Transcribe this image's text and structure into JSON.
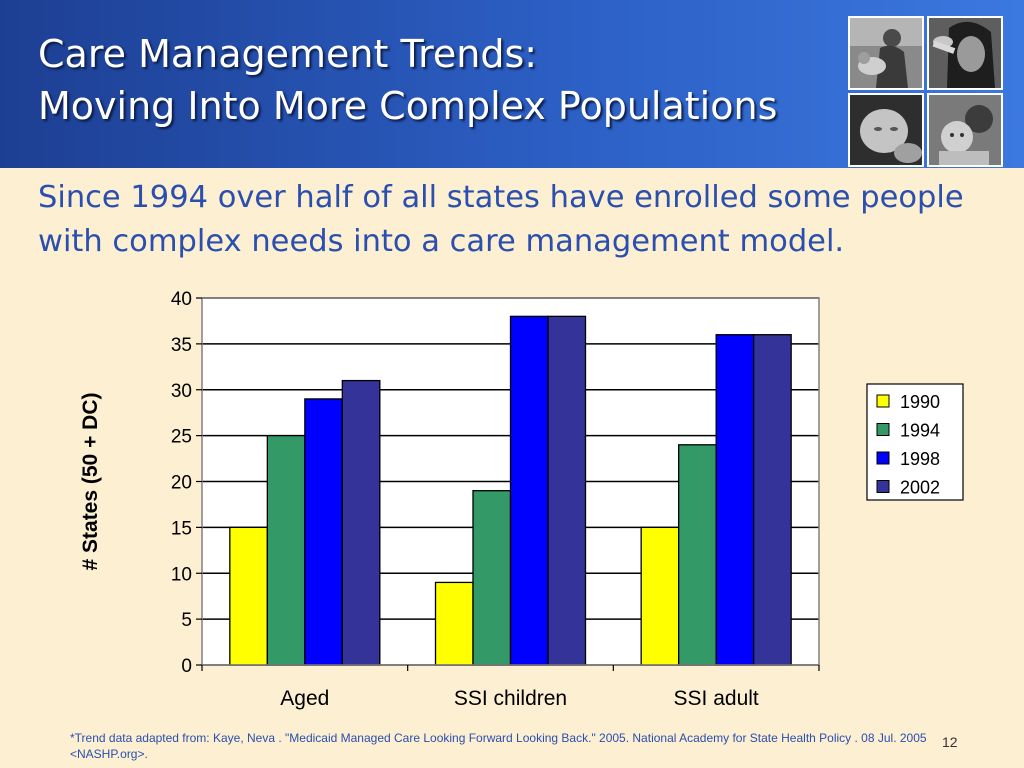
{
  "slide": {
    "title_line1": "Care Management Trends:",
    "title_line2": "Moving Into More Complex Populations",
    "subtitle": "Since 1994 over half of all states have enrolled some people with complex needs into a care management model.",
    "footnote": "*Trend data adapted from: Kaye, Neva . \"Medicaid Managed Care Looking Forward Looking Back.\" 2005. National Academy for State Health Policy . 08 Jul. 2005 <NASHP.org>.",
    "page_number": "12",
    "colors": {
      "header_dark": "#1d3f93",
      "header_light": "#3b78e0",
      "background": "#fcefd2",
      "subtitle_text": "#2a4fae"
    }
  },
  "chart_data": {
    "type": "bar",
    "title": "",
    "xlabel": "",
    "ylabel": "# States (50 + DC)",
    "categories": [
      "Aged",
      "SSI children",
      "SSI adult"
    ],
    "series": [
      {
        "name": "1990",
        "values": [
          15,
          9,
          15
        ],
        "color": "#ffff00"
      },
      {
        "name": "1994",
        "values": [
          25,
          19,
          24
        ],
        "color": "#339966"
      },
      {
        "name": "1998",
        "values": [
          29,
          38,
          36
        ],
        "color": "#0000ff"
      },
      {
        "name": "2002",
        "values": [
          31,
          38,
          36
        ],
        "color": "#333399"
      }
    ],
    "ylim": [
      0,
      40
    ],
    "yticks": [
      0,
      5,
      10,
      15,
      20,
      25,
      30,
      35,
      40
    ],
    "grid": true,
    "legend_position": "right"
  }
}
